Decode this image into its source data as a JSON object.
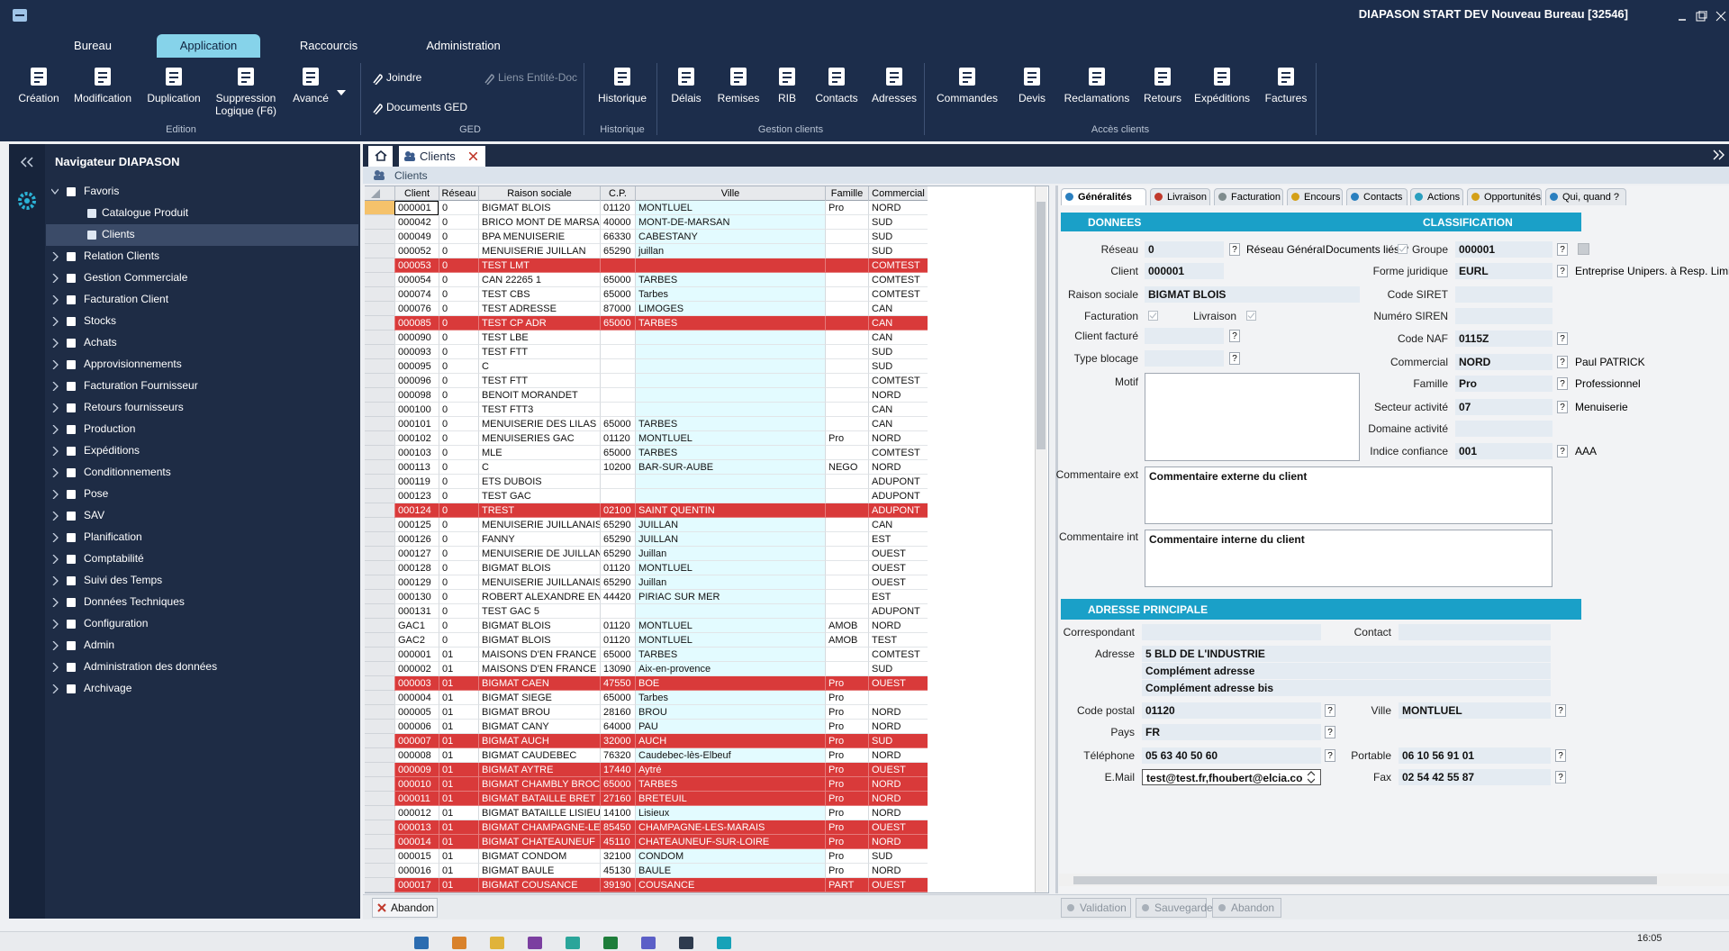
{
  "window": {
    "title": "DIAPASON START DEV Nouveau Bureau [32546]"
  },
  "ribbon": {
    "tabs": [
      {
        "label": "Bureau"
      },
      {
        "label": "Application",
        "active": true
      },
      {
        "label": "Raccourcis"
      },
      {
        "label": "Administration"
      }
    ],
    "groups": [
      {
        "label": "Edition",
        "buttons": [
          {
            "label": "Création"
          },
          {
            "label": "Modification"
          },
          {
            "label": "Duplication"
          },
          {
            "label": "Suppression Logique (F6)"
          },
          {
            "label": "Avancé"
          }
        ]
      },
      {
        "label": "GED",
        "buttons": [
          {
            "label": "Joindre"
          },
          {
            "label": "Liens Entité-Doc",
            "disabled": true
          },
          {
            "label": "Documents GED"
          }
        ]
      },
      {
        "label": "Historique",
        "buttons": [
          {
            "label": "Historique"
          }
        ]
      },
      {
        "label": "Gestion clients",
        "buttons": [
          {
            "label": "Délais"
          },
          {
            "label": "Remises"
          },
          {
            "label": "RIB"
          },
          {
            "label": "Contacts"
          },
          {
            "label": "Adresses"
          }
        ]
      },
      {
        "label": "Accès clients",
        "buttons": [
          {
            "label": "Commandes"
          },
          {
            "label": "Devis"
          },
          {
            "label": "Reclamations"
          },
          {
            "label": "Retours"
          },
          {
            "label": "Expéditions"
          },
          {
            "label": "Factures"
          }
        ]
      }
    ]
  },
  "navigator": {
    "title": "Navigateur DIAPASON",
    "items": [
      {
        "label": "Favoris",
        "children": [
          {
            "label": "Catalogue Produit"
          },
          {
            "label": "Clients",
            "selected": true
          }
        ]
      },
      {
        "label": "Relation Clients"
      },
      {
        "label": "Gestion Commerciale"
      },
      {
        "label": "Facturation Client"
      },
      {
        "label": "Stocks"
      },
      {
        "label": "Achats"
      },
      {
        "label": "Approvisionnements"
      },
      {
        "label": "Facturation Fournisseur"
      },
      {
        "label": "Retours fournisseurs"
      },
      {
        "label": "Production"
      },
      {
        "label": "Expéditions"
      },
      {
        "label": "Conditionnements"
      },
      {
        "label": "Pose"
      },
      {
        "label": "SAV"
      },
      {
        "label": "Planification"
      },
      {
        "label": "Comptabilité"
      },
      {
        "label": "Suivi des Temps"
      },
      {
        "label": "Données Techniques"
      },
      {
        "label": "Configuration"
      },
      {
        "label": "Admin"
      },
      {
        "label": "Administration des données"
      },
      {
        "label": "Archivage"
      }
    ]
  },
  "document_tab": {
    "label": "Clients"
  },
  "list_header": "Clients",
  "grid": {
    "columns": [
      "Client",
      "Réseau",
      "Raison sociale",
      "C.P.",
      "Ville",
      "Famille",
      "Commercial"
    ],
    "rows": [
      {
        "cells": [
          "000001",
          "0",
          "BIGMAT BLOIS",
          "01120",
          "MONTLUEL",
          "Pro",
          "NORD"
        ],
        "selected": true
      },
      {
        "cells": [
          "000042",
          "0",
          "BRICO MONT DE MARSA",
          "40000",
          "MONT-DE-MARSAN",
          null,
          "SUD"
        ]
      },
      {
        "cells": [
          "000049",
          "0",
          "BPA MENUISERIE",
          "66330",
          "CABESTANY",
          null,
          "SUD"
        ]
      },
      {
        "cells": [
          "000052",
          "0",
          "MENUISERIE JUILLAN",
          "65290",
          "juillan",
          null,
          "SUD"
        ]
      },
      {
        "cells": [
          "000053",
          "0",
          "TEST LMT",
          null,
          null,
          null,
          "COMTEST"
        ],
        "highlight": true
      },
      {
        "cells": [
          "000054",
          "0",
          "CAN 22265 1",
          "65000",
          "TARBES",
          null,
          "COMTEST"
        ]
      },
      {
        "cells": [
          "000074",
          "0",
          "TEST CBS",
          "65000",
          "Tarbes",
          null,
          "COMTEST"
        ]
      },
      {
        "cells": [
          "000076",
          "0",
          "TEST ADRESSE",
          "87000",
          "LIMOGES",
          null,
          "CAN"
        ]
      },
      {
        "cells": [
          "000085",
          "0",
          "TEST CP ADR",
          "65000",
          "TARBES",
          null,
          "CAN"
        ],
        "highlight": true
      },
      {
        "cells": [
          "000090",
          "0",
          "TEST LBE",
          null,
          null,
          null,
          "CAN"
        ]
      },
      {
        "cells": [
          "000093",
          "0",
          "TEST FTT",
          null,
          null,
          null,
          "SUD"
        ]
      },
      {
        "cells": [
          "000095",
          "0",
          "C",
          null,
          null,
          null,
          "SUD"
        ]
      },
      {
        "cells": [
          "000096",
          "0",
          "TEST FTT",
          null,
          null,
          null,
          "COMTEST"
        ]
      },
      {
        "cells": [
          "000098",
          "0",
          "BENOIT MORANDET",
          null,
          null,
          null,
          "NORD"
        ]
      },
      {
        "cells": [
          "000100",
          "0",
          "TEST FTT3",
          null,
          null,
          null,
          "CAN"
        ]
      },
      {
        "cells": [
          "000101",
          "0",
          "MENUISERIE DES LILAS",
          "65000",
          "TARBES",
          null,
          "CAN"
        ]
      },
      {
        "cells": [
          "000102",
          "0",
          "MENUISERIES GAC",
          "01120",
          "MONTLUEL",
          "Pro",
          "NORD"
        ]
      },
      {
        "cells": [
          "000103",
          "0",
          "MLE",
          "65000",
          "TARBES",
          null,
          "COMTEST"
        ]
      },
      {
        "cells": [
          "000113",
          "0",
          "C",
          "10200",
          "BAR-SUR-AUBE",
          "NEGO",
          "NORD"
        ]
      },
      {
        "cells": [
          "000119",
          "0",
          "ETS DUBOIS",
          null,
          null,
          null,
          "ADUPONT"
        ]
      },
      {
        "cells": [
          "000123",
          "0",
          "TEST GAC",
          null,
          null,
          null,
          "ADUPONT"
        ]
      },
      {
        "cells": [
          "000124",
          "0",
          "TREST",
          "02100",
          "SAINT QUENTIN",
          null,
          "ADUPONT"
        ],
        "highlight": true
      },
      {
        "cells": [
          "000125",
          "0",
          "MENUISERIE JUILLANAIS",
          "65290",
          "JUILLAN",
          null,
          "CAN"
        ]
      },
      {
        "cells": [
          "000126",
          "0",
          "FANNY",
          "65290",
          "JUILLAN",
          null,
          "EST"
        ]
      },
      {
        "cells": [
          "000127",
          "0",
          "MENUISERIE DE JUILLAN",
          "65290",
          "Juillan",
          null,
          "OUEST"
        ]
      },
      {
        "cells": [
          "000128",
          "0",
          "BIGMAT BLOIS",
          "01120",
          "MONTLUEL",
          null,
          "OUEST"
        ]
      },
      {
        "cells": [
          "000129",
          "0",
          "MENUISERIE JUILLANAIS",
          "65290",
          "Juillan",
          null,
          "OUEST"
        ]
      },
      {
        "cells": [
          "000130",
          "0",
          "ROBERT ALEXANDRE EN",
          "44420",
          "PIRIAC SUR MER",
          null,
          "EST"
        ]
      },
      {
        "cells": [
          "000131",
          "0",
          "TEST GAC 5",
          null,
          null,
          null,
          "ADUPONT"
        ]
      },
      {
        "cells": [
          "GAC1",
          "0",
          "BIGMAT BLOIS",
          "01120",
          "MONTLUEL",
          "AMOB",
          "NORD"
        ]
      },
      {
        "cells": [
          "GAC2",
          "0",
          "BIGMAT BLOIS",
          "01120",
          "MONTLUEL",
          "AMOB",
          "TEST"
        ]
      },
      {
        "cells": [
          "000001",
          "01",
          "MAISONS D'EN FRANCE",
          "65000",
          "TARBES",
          null,
          "COMTEST"
        ]
      },
      {
        "cells": [
          "000002",
          "01",
          "MAISONS D'EN FRANCE",
          "13090",
          "Aix-en-provence",
          null,
          "SUD"
        ]
      },
      {
        "cells": [
          "000003",
          "01",
          "BIGMAT CAEN",
          "47550",
          "BOE",
          "Pro",
          "OUEST"
        ],
        "highlight": true
      },
      {
        "cells": [
          "000004",
          "01",
          "BIGMAT SIEGE",
          "65000",
          "Tarbes",
          "Pro",
          null
        ]
      },
      {
        "cells": [
          "000005",
          "01",
          "BIGMAT BROU",
          "28160",
          "BROU",
          "Pro",
          "NORD"
        ]
      },
      {
        "cells": [
          "000006",
          "01",
          "BIGMAT CANY",
          "64000",
          "PAU",
          "Pro",
          "NORD"
        ]
      },
      {
        "cells": [
          "000007",
          "01",
          "BIGMAT AUCH",
          "32000",
          "AUCH",
          "Pro",
          "SUD"
        ],
        "highlight": true
      },
      {
        "cells": [
          "000008",
          "01",
          "BIGMAT CAUDEBEC",
          "76320",
          "Caudebec-lès-Elbeuf",
          "Pro",
          "NORD"
        ]
      },
      {
        "cells": [
          "000009",
          "01",
          "BIGMAT AYTRE",
          "17440",
          "Aytré",
          "Pro",
          "OUEST"
        ],
        "highlight": true
      },
      {
        "cells": [
          "000010",
          "01",
          "BIGMAT CHAMBLY BROC",
          "65000",
          "TARBES",
          "Pro",
          "NORD"
        ],
        "highlight": true
      },
      {
        "cells": [
          "000011",
          "01",
          "BIGMAT BATAILLE BRET",
          "27160",
          "BRETEUIL",
          "Pro",
          "NORD"
        ],
        "highlight": true
      },
      {
        "cells": [
          "000012",
          "01",
          "BIGMAT BATAILLE LISIEU",
          "14100",
          "Lisieux",
          "Pro",
          "NORD"
        ]
      },
      {
        "cells": [
          "000013",
          "01",
          "BIGMAT CHAMPAGNE-LE",
          "85450",
          "CHAMPAGNE-LES-MARAIS",
          "Pro",
          "OUEST"
        ],
        "highlight": true
      },
      {
        "cells": [
          "000014",
          "01",
          "BIGMAT CHATEAUNEUF",
          "45110",
          "CHATEAUNEUF-SUR-LOIRE",
          "Pro",
          "NORD"
        ],
        "highlight": true
      },
      {
        "cells": [
          "000015",
          "01",
          "BIGMAT CONDOM",
          "32100",
          "CONDOM",
          "Pro",
          "SUD"
        ]
      },
      {
        "cells": [
          "000016",
          "01",
          "BIGMAT BAULE",
          "45130",
          "BAULE",
          "Pro",
          "NORD"
        ]
      },
      {
        "cells": [
          "000017",
          "01",
          "BIGMAT COUSANCE",
          "39190",
          "COUSANCE",
          "PART",
          "OUEST"
        ],
        "highlight": true
      }
    ]
  },
  "detail": {
    "tabs": [
      {
        "label": "Généralités",
        "active": true
      },
      {
        "label": "Livraison"
      },
      {
        "label": "Facturation"
      },
      {
        "label": "Encours"
      },
      {
        "label": "Contacts"
      },
      {
        "label": "Actions"
      },
      {
        "label": "Opportunités"
      },
      {
        "label": "Qui, quand ?"
      }
    ],
    "help_label": "?",
    "donnees": {
      "title": "DONNEES",
      "reseau_general": "Réseau Général",
      "documents_lies": "Documents liés ?",
      "fields": [
        {
          "label": "Réseau",
          "value": "0",
          "help": true
        },
        {
          "label": "Client",
          "value": "000001"
        },
        {
          "label": "Raison sociale",
          "value": "BIGMAT BLOIS"
        },
        {
          "label": "Facturation",
          "checked": true
        },
        {
          "label": "Livraison",
          "checked": true
        },
        {
          "label": "Client facturé",
          "value": null,
          "help": true
        },
        {
          "label": "Type blocage",
          "value": null,
          "help": true
        },
        {
          "label": "Motif",
          "value": null
        },
        {
          "label": "Commentaire ext",
          "value": "Commentaire externe du client"
        },
        {
          "label": "Commentaire int",
          "value": "Commentaire interne du client"
        }
      ]
    },
    "classification": {
      "title": "CLASSIFICATION",
      "fields": [
        {
          "label": "Groupe",
          "value": "000001",
          "help": true
        },
        {
          "label": "Forme juridique",
          "value": "EURL",
          "help": true,
          "note": "Entreprise Unipers. à Resp. Limitée"
        },
        {
          "label": "Code SIRET",
          "value": null
        },
        {
          "label": "Numéro SIREN",
          "value": null
        },
        {
          "label": "Code NAF",
          "value": "0115Z",
          "help": true
        },
        {
          "label": "Commercial",
          "value": "NORD",
          "help": true,
          "note": "Paul PATRICK"
        },
        {
          "label": "Famille",
          "value": "Pro",
          "help": true,
          "note": "Professionnel"
        },
        {
          "label": "Secteur activité",
          "value": "07",
          "help": true,
          "note": "Menuiserie"
        },
        {
          "label": "Domaine activité",
          "value": null
        },
        {
          "label": "Indice confiance",
          "value": "001",
          "help": true,
          "note": "AAA"
        }
      ]
    },
    "adresse": {
      "title": "ADRESSE PRINCIPALE",
      "fields": [
        {
          "label": "Correspondant",
          "value": null
        },
        {
          "label": "Contact",
          "value": null
        },
        {
          "label": "Adresse",
          "value": "5 BLD DE L'INDUSTRIE"
        },
        {
          "label": null,
          "value": "Complément adresse"
        },
        {
          "label": null,
          "value": "Complément adresse bis"
        },
        {
          "label": "Code postal",
          "value": "01120",
          "help": true
        },
        {
          "label": "Ville",
          "value": "MONTLUEL",
          "help": true
        },
        {
          "label": "Pays",
          "value": "FR",
          "help": true
        },
        {
          "label": "Téléphone",
          "value": "05 63 40 50 60",
          "help": true
        },
        {
          "label": "Portable",
          "value": "06 10 56 91 01",
          "help": true
        },
        {
          "label": "E.Mail",
          "value": "test@test.fr,fhoubert@elcia.co"
        },
        {
          "label": "Fax",
          "value": "02 54 42 55 87",
          "help": true
        }
      ]
    }
  },
  "list_buttons": [
    {
      "label": "Abandon"
    }
  ],
  "detail_buttons": [
    {
      "label": "Validation",
      "disabled": true
    },
    {
      "label": "Sauvegarde",
      "disabled": true
    },
    {
      "label": "Abandon",
      "disabled": true
    }
  ],
  "taskbar": {
    "time": "16:05"
  }
}
